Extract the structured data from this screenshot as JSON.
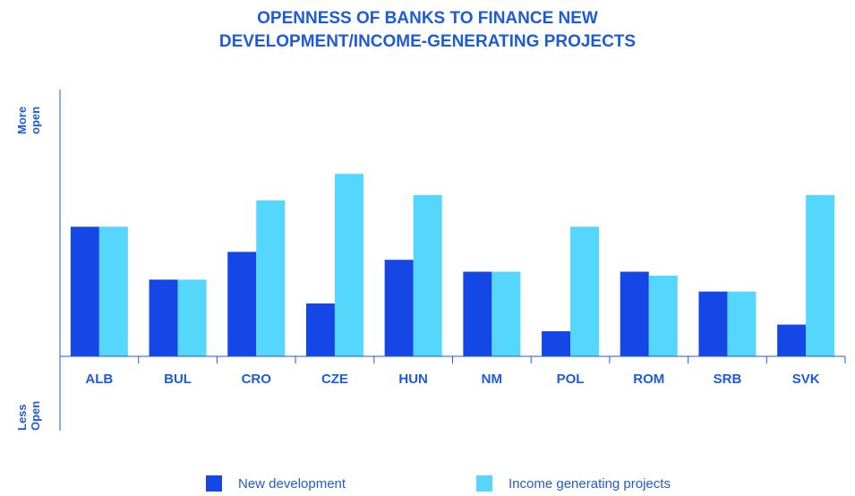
{
  "chart_data": {
    "type": "bar",
    "title": [
      "OPENNESS OF BANKS TO FINANCE NEW",
      "DEVELOPMENT/INCOME-GENERATING PROJECTS"
    ],
    "axis_top_label": [
      "More",
      "open"
    ],
    "axis_bottom_label": [
      "Less",
      "Open"
    ],
    "categories": [
      "ALB",
      "BUL",
      "CRO",
      "CZE",
      "HUN",
      "NM",
      "POL",
      "ROM",
      "SRB",
      "SVK"
    ],
    "series": [
      {
        "name": "New development",
        "color": "#1447e6",
        "values": [
          4.9,
          2.9,
          3.95,
          2.0,
          3.65,
          3.2,
          0.95,
          3.2,
          2.45,
          1.2
        ]
      },
      {
        "name": "Income generating projects",
        "color": "#54d6fd",
        "values": [
          4.9,
          2.9,
          5.9,
          6.9,
          6.1,
          3.2,
          4.9,
          3.05,
          2.45,
          6.1
        ]
      }
    ],
    "ylim": [
      -2.9,
      10
    ],
    "grid": false,
    "legend_position": "bottom"
  }
}
